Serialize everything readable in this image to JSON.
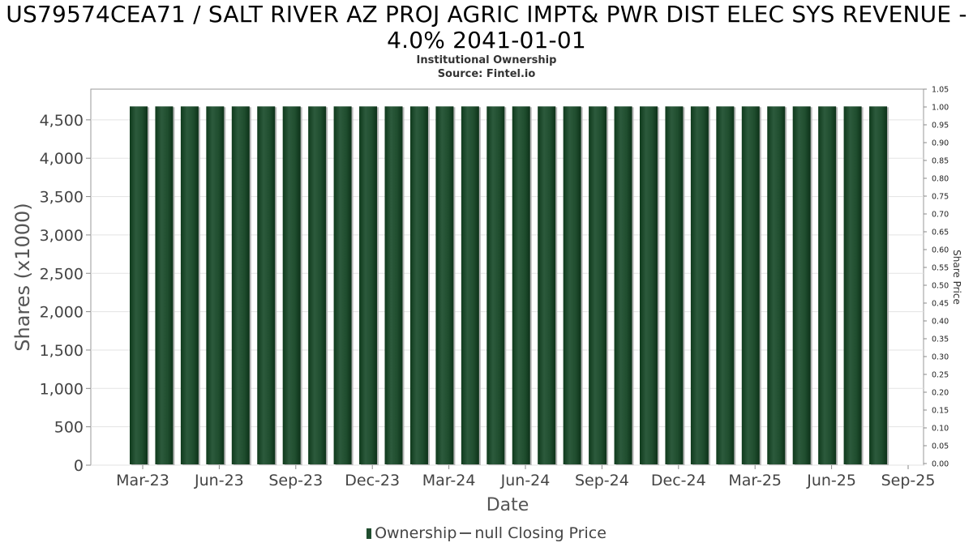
{
  "chart_data": {
    "type": "bar",
    "title": "US79574CEA71 / SALT RIVER AZ PROJ AGRIC IMPT& PWR DIST ELEC SYS REVENUE -",
    "title_line2": "4.0% 2041-01-01",
    "subtitle": "Institutional Ownership",
    "source": "Source: Fintel.io",
    "xlabel": "Date",
    "ylabel": "Shares (x1000)",
    "y2label": "Share Price",
    "ylim": [
      0,
      4900
    ],
    "y2lim": [
      0,
      1.05
    ],
    "yticks": [
      0,
      500,
      1000,
      1500,
      2000,
      2500,
      3000,
      3500,
      4000,
      4500
    ],
    "ytick_labels": [
      "0",
      "500",
      "1,000",
      "1,500",
      "2,000",
      "2,500",
      "3,000",
      "3,500",
      "4,000",
      "4,500"
    ],
    "y2ticks": [
      "0.00",
      "0.05",
      "0.10",
      "0.15",
      "0.20",
      "0.25",
      "0.30",
      "0.35",
      "0.40",
      "0.45",
      "0.50",
      "0.55",
      "0.60",
      "0.65",
      "0.70",
      "0.75",
      "0.80",
      "0.85",
      "0.90",
      "0.95",
      "1.00",
      "1.05"
    ],
    "xticks": [
      "Mar-23",
      "Jun-23",
      "Sep-23",
      "Dec-23",
      "Mar-24",
      "Jun-24",
      "Sep-24",
      "Dec-24",
      "Mar-25",
      "Jun-25",
      "Sep-25"
    ],
    "grid": true,
    "legend": [
      "Ownership",
      "null Closing Price"
    ],
    "legend_position": "bottom",
    "series": [
      {
        "name": "Ownership",
        "color": "#1f4d2e",
        "values": [
          4675,
          4675,
          4675,
          4675,
          4675,
          4675,
          4675,
          4675,
          4675,
          4675,
          4675,
          4675,
          4675,
          4675,
          4675,
          4675,
          4675,
          4675,
          4675,
          4675,
          4675,
          4675,
          4675,
          4675,
          4675,
          4675,
          4675,
          4675,
          4675,
          4675
        ]
      }
    ]
  }
}
